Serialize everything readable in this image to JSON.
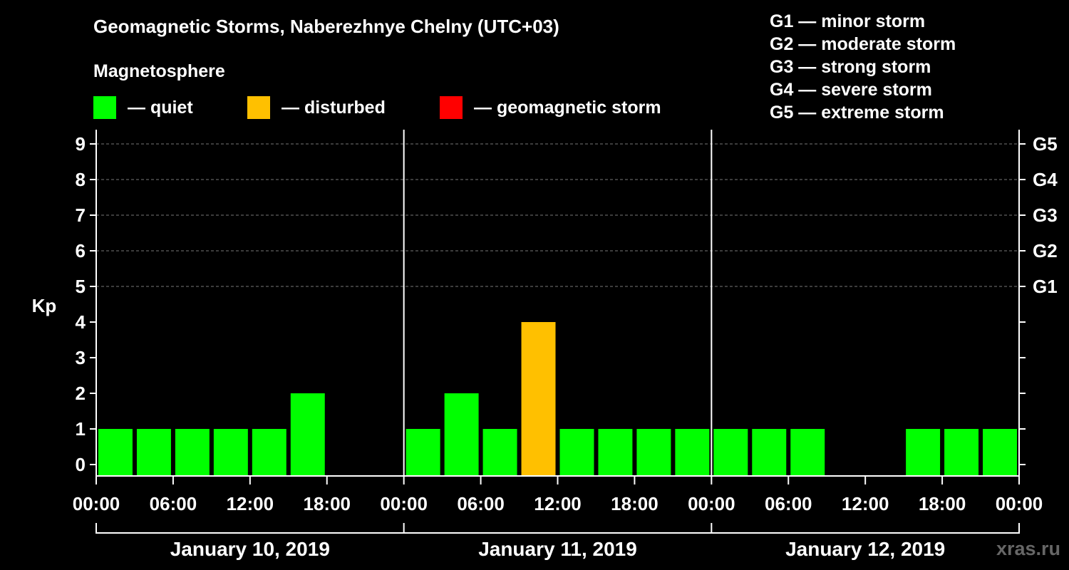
{
  "title": "Geomagnetic Storms, Naberezhnye Chelny (UTC+03)",
  "subtitle": "Magnetosphere",
  "legend": [
    {
      "label": "— quiet",
      "color": "#00ff00"
    },
    {
      "label": "— disturbed",
      "color": "#ffc000"
    },
    {
      "label": "— geomagnetic storm",
      "color": "#ff0000"
    }
  ],
  "storm_levels": [
    "G1 — minor storm",
    "G2 — moderate storm",
    "G3 — strong storm",
    "G4 — severe storm",
    "G5 — extreme storm"
  ],
  "watermark": "xras.ru",
  "colors": {
    "quiet": "#00ff00",
    "disturbed": "#ffc000",
    "storm": "#ff0000",
    "background": "#000000",
    "axis": "#ffffff"
  },
  "chart_data": {
    "type": "bar",
    "ylabel": "Kp",
    "ylim": [
      0,
      9
    ],
    "yticks": [
      "0",
      "1",
      "2",
      "3",
      "4",
      "5",
      "6",
      "7",
      "8",
      "9"
    ],
    "right_axis_labels": [
      {
        "value": 5,
        "label": "G1"
      },
      {
        "value": 6,
        "label": "G2"
      },
      {
        "value": 7,
        "label": "G3"
      },
      {
        "value": 8,
        "label": "G4"
      },
      {
        "value": 9,
        "label": "G5"
      }
    ],
    "grid": "dashed at Kp 5-9",
    "days": [
      "January 10, 2019",
      "January 11, 2019",
      "January 12, 2019"
    ],
    "xtick_labels": [
      "00:00",
      "06:00",
      "12:00",
      "18:00",
      "00:00",
      "06:00",
      "12:00",
      "18:00",
      "00:00",
      "06:00",
      "12:00",
      "18:00",
      "00:00"
    ],
    "interval_hours": 3,
    "values": [
      1,
      1,
      1,
      1,
      1,
      2,
      null,
      null,
      1,
      2,
      1,
      4,
      1,
      1,
      1,
      1,
      1,
      1,
      1,
      null,
      null,
      1,
      1,
      1
    ],
    "status": [
      "quiet",
      "quiet",
      "quiet",
      "quiet",
      "quiet",
      "quiet",
      null,
      null,
      "quiet",
      "quiet",
      "quiet",
      "disturbed",
      "quiet",
      "quiet",
      "quiet",
      "quiet",
      "quiet",
      "quiet",
      "quiet",
      null,
      null,
      "quiet",
      "quiet",
      "quiet"
    ]
  }
}
